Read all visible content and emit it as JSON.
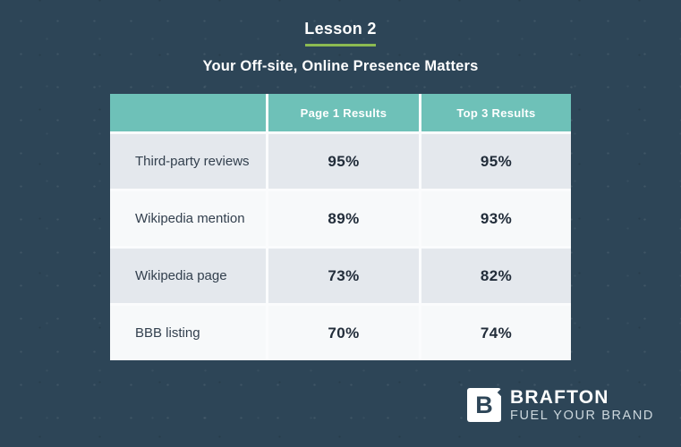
{
  "header": {
    "title": "Lesson 2",
    "subtitle": "Your Off-site, Online Presence Matters"
  },
  "chart_data": {
    "type": "table",
    "title": "Lesson 2",
    "subtitle": "Your Off-site, Online Presence Matters",
    "columns": [
      "",
      "Page 1 Results",
      "Top 3 Results"
    ],
    "rows": [
      [
        "Third-party reviews",
        "95%",
        "95%"
      ],
      [
        "Wikipedia mention",
        "89%",
        "93%"
      ],
      [
        "Wikipedia page",
        "73%",
        "82%"
      ],
      [
        "BBB listing",
        "70%",
        "74%"
      ]
    ],
    "layout_hints": {
      "header_fill": "#6ec1b8",
      "row_alternation": [
        "#e4e8ed",
        "#f7f9fa"
      ],
      "first_column_is_row_labels": true
    }
  },
  "logo": {
    "monogram": "B",
    "name": "BRAFTON",
    "tagline": "FUEL YOUR BRAND"
  },
  "colors": {
    "background": "#2d4557",
    "accent_green_underline": "#8cbb51",
    "header_teal": "#6ec1b8",
    "row_dark": "#e4e8ed",
    "row_light": "#f7f9fa",
    "text_dark": "#2e3c4b",
    "text_white": "#ffffff"
  }
}
